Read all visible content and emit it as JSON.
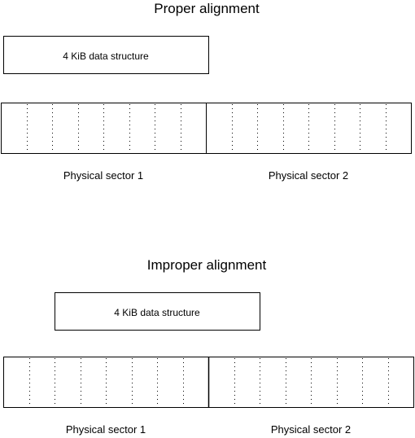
{
  "colors": {
    "stroke": "#000000",
    "background": "#ffffff"
  },
  "proper": {
    "title": "Proper alignment",
    "data_structure_label": "4 KiB data structure",
    "sector_1_label": "Physical sector 1",
    "sector_2_label": "Physical sector 2"
  },
  "improper": {
    "title": "Improper alignment",
    "data_structure_label": "4 KiB data structure",
    "sector_1_label": "Physical sector 1",
    "sector_2_label": "Physical sector 2"
  }
}
